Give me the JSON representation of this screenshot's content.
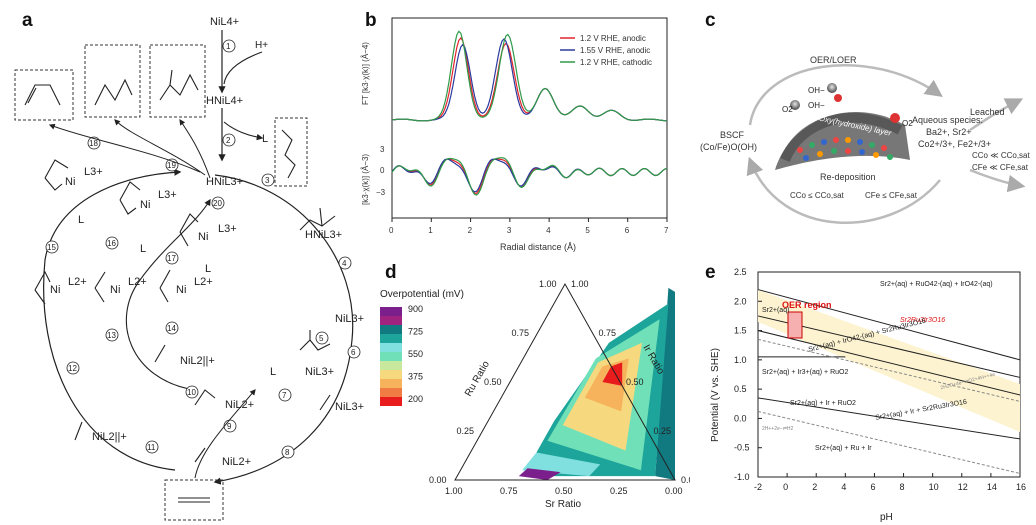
{
  "labels": {
    "a": "a",
    "b": "b",
    "c": "c",
    "d": "d",
    "e": "e"
  },
  "panel_a": {
    "top_species": "NiL4+",
    "h_plus": "H+",
    "hnil4": "HNiL4+",
    "ligand": "L",
    "hnil3": "HNiL3+",
    "hnil3b": "HNiL3+",
    "nil3": "NiL3+",
    "nil2": "NiL2+",
    "nil2pi": "NiL2||+",
    "ni": "Ni",
    "l3": "L3+",
    "l2": "L2+",
    "steps": [
      "1",
      "2",
      "3",
      "4",
      "5",
      "6",
      "7",
      "8",
      "9",
      "10",
      "11",
      "12",
      "13",
      "14",
      "15",
      "16",
      "17",
      "18",
      "19",
      "20"
    ]
  },
  "chart_data": [
    {
      "type": "line",
      "panel": "b",
      "title": "",
      "xlabel": "Radial distance (Å)",
      "ylabel_top": "FT [k3·χ(k)] (Å−4)",
      "ylabel_bottom": "[k3·χ(k)] (Å−3)",
      "xlim": [
        0,
        7
      ],
      "xticks": [
        "0",
        "1",
        "2",
        "3",
        "4",
        "5",
        "6",
        "7"
      ],
      "yticks_bottom": [
        "3",
        "0",
        "−3"
      ],
      "legend": [
        "1.2 V RHE, anodic",
        "1.55 V RHE, anodic",
        "1.2 V RHE, cathodic"
      ],
      "colors": [
        "#e3242b",
        "#2b3a9e",
        "#2e9b4a"
      ],
      "peaks_top": [
        [
          1.75,
          4.7
        ],
        [
          2.9,
          4.6
        ]
      ]
    },
    {
      "type": "ternary",
      "panel": "d",
      "title": "Overpotential (mV)",
      "axis_bottom": "Sr Ratio",
      "axis_left": "Ru Ratio",
      "axis_right": "Ir Ratio",
      "ticks_bottom": [
        "1.00",
        "0.75",
        "0.50",
        "0.25",
        "0.00"
      ],
      "ticks_left": [
        "0.00",
        "0.25",
        "0.50",
        "0.75",
        "1.00"
      ],
      "ticks_right": [
        "0.00",
        "0.25",
        "0.50",
        "0.75",
        "1.00"
      ],
      "colorbar_ticks": [
        "900",
        "725",
        "550",
        "375",
        "200"
      ],
      "colorbar_colors": [
        "#7b1f8c",
        "#a0237f",
        "#117a80",
        "#1ea59b",
        "#7fe0df",
        "#6fe0b8",
        "#c7e89d",
        "#f6d97f",
        "#f7b35c",
        "#f17c43",
        "#e81c1c"
      ]
    },
    {
      "type": "line",
      "panel": "e",
      "title": "",
      "xlabel": "pH",
      "ylabel": "Potential (V vs. SHE)",
      "xlim": [
        -2,
        16
      ],
      "ylim": [
        -1.0,
        2.5
      ],
      "xticks": [
        "-2",
        "0",
        "2",
        "4",
        "6",
        "8",
        "10",
        "12",
        "14",
        "16"
      ],
      "yticks": [
        "2.5",
        "2.0",
        "1.5",
        "1.0",
        "0.5",
        "0.0",
        "-0.5",
        "-1.0"
      ],
      "region_label": "OER region",
      "species": [
        "Sr2+(aq) + RuO42-(aq) + IrO42-(aq)",
        "Sr2Ru3Ir3O16",
        "Sr2+(aq)",
        "Sr2+(aq) + IrO42-(aq) + Sr2Ru3Ir3O16",
        "Sr2+(aq) + Ir3+(aq) + RuO2",
        "Sr2+(aq) + Ir + RuO2",
        "Sr2+(aq) + Ir + Sr2Ru3Ir3O16",
        "Sr2+(aq) + Ru + Ir",
        "2H2O+4e−⇌O2+4H++4e",
        "2H++2e−⇌H2"
      ]
    }
  ],
  "panel_c": {
    "top": "OER/LOER",
    "left_1": "BSCF",
    "left_2": "(Co/Fe)O(OH)",
    "right_title": "Aqueous species:",
    "right_1": "Ba2+, Sr2+",
    "right_2": "Co2+/3+, Fe2+/3+",
    "leached": "Leached",
    "cond_co": "CCo ≪ CCo,sat",
    "cond_fe": "CFe ≪ CFe,sat",
    "redep": "Re-deposition",
    "low_co": "CCo ≤ CCo,sat",
    "low_fe": "CFe ≤ CFe,sat",
    "layer": "Oxy(hydroxide) layer",
    "o2": "O2",
    "oh": "OH−"
  }
}
